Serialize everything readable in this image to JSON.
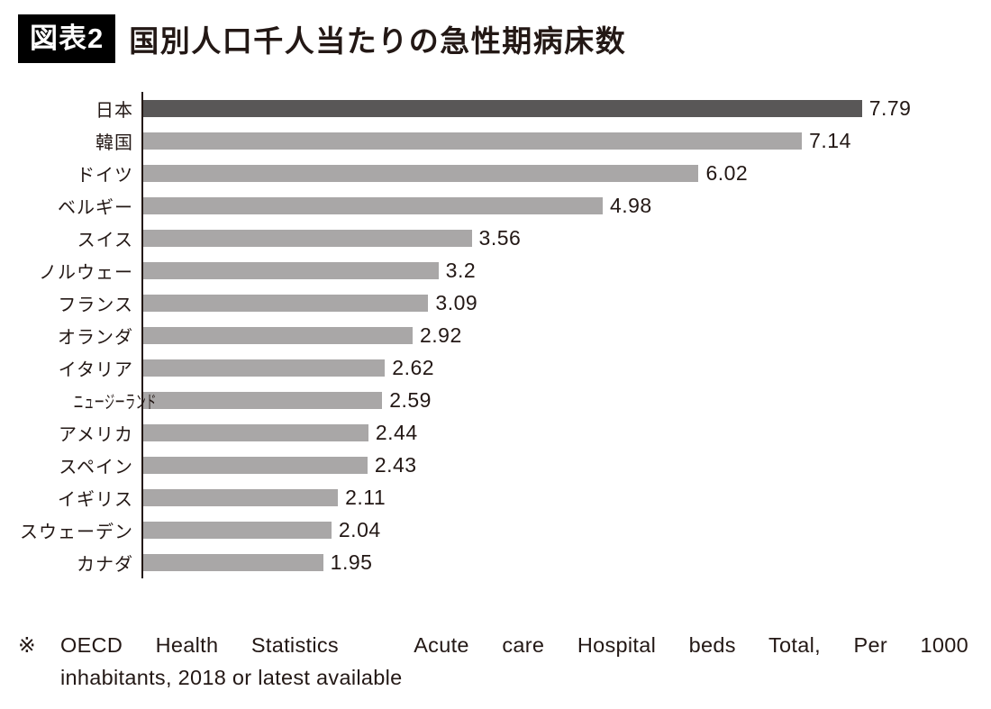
{
  "header": {
    "badge": "図表2",
    "title": "国別人口千人当たりの急性期病床数"
  },
  "chart_data": {
    "type": "bar",
    "orientation": "horizontal",
    "title": "国別人口千人当たりの急性期病床数",
    "categories": [
      "日本",
      "韓国",
      "ドイツ",
      "ベルギー",
      "スイス",
      "ノルウェー",
      "フランス",
      "オランダ",
      "イタリア",
      "ニュージーランド",
      "アメリカ",
      "スペイン",
      "イギリス",
      "スウェーデン",
      "カナダ"
    ],
    "values": [
      7.79,
      7.14,
      6.02,
      4.98,
      3.56,
      3.2,
      3.09,
      2.92,
      2.62,
      2.59,
      2.44,
      2.43,
      2.11,
      2.04,
      1.95
    ],
    "value_labels": [
      "7.79",
      "7.14",
      "6.02",
      "4.98",
      "3.56",
      "3.2",
      "3.09",
      "2.92",
      "2.62",
      "2.59",
      "2.44",
      "2.43",
      "2.11",
      "2.04",
      "1.95"
    ],
    "xlim": [
      0,
      9.3
    ],
    "highlight_category": "日本",
    "grid": false,
    "legend": "none",
    "colors": {
      "highlight_bar": "#595757",
      "bar": "#a9a7a7",
      "axis": "#231815",
      "value_text": "#231815"
    }
  },
  "footer": {
    "marker": "※",
    "line1": "OECD Health Statistics　Acute care Hospital beds Total, Per 1000",
    "line2": "inhabitants, 2018 or latest available"
  }
}
